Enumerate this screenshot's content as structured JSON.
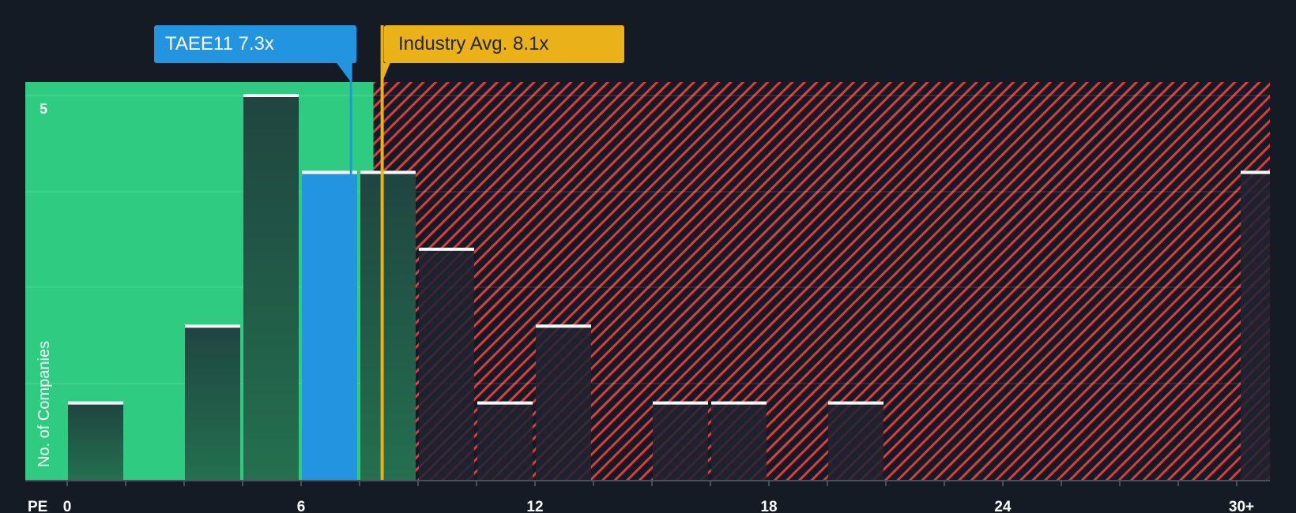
{
  "header": {
    "company_label": "TAEE11 7.3x",
    "industry_label": "Industry Avg. 8.1x"
  },
  "axes": {
    "x_label": "PE",
    "y_label": "No. of Companies",
    "y_tick": "5",
    "x_ticks": [
      "0",
      "6",
      "12",
      "18",
      "24",
      "30+"
    ]
  },
  "colors": {
    "background": "#151b24",
    "undervalued_zone": "#2ecb80",
    "overvalued_hatch": "#e0393e",
    "company_bar": "#2394df",
    "company_marker": "#2394df",
    "industry_marker": "#ebb118",
    "bar_cap": "#ffffff"
  },
  "chart_data": {
    "type": "bar",
    "title": "",
    "xlabel": "PE",
    "ylabel": "No. of Companies",
    "bin_width": 1.5,
    "categories": [
      "0-1.5",
      "1.5-3",
      "3-4.5",
      "4.5-6",
      "6-7.5",
      "7.5-9",
      "9-10.5",
      "10.5-12",
      "12-13.5",
      "13.5-15",
      "15-16.5",
      "16.5-18",
      "18-19.5",
      "19.5-21",
      "21-22.5",
      "22.5-24",
      "24-25.5",
      "25.5-27",
      "27-28.5",
      "28.5-30",
      "30+"
    ],
    "values": [
      1,
      0,
      2,
      5,
      4,
      4,
      3,
      1,
      2,
      0,
      1,
      1,
      0,
      1,
      0,
      0,
      0,
      0,
      0,
      0,
      4
    ],
    "highlighted_bin": "6-7.5",
    "company_value": 7.3,
    "industry_avg": 8.1,
    "x_ticks": [
      0,
      6,
      12,
      18,
      24,
      "30+"
    ],
    "ylim": [
      0,
      5
    ],
    "grid": true,
    "zones": {
      "undervalued": [
        0,
        8.1
      ],
      "overvalued": [
        8.1,
        "30+"
      ]
    }
  }
}
